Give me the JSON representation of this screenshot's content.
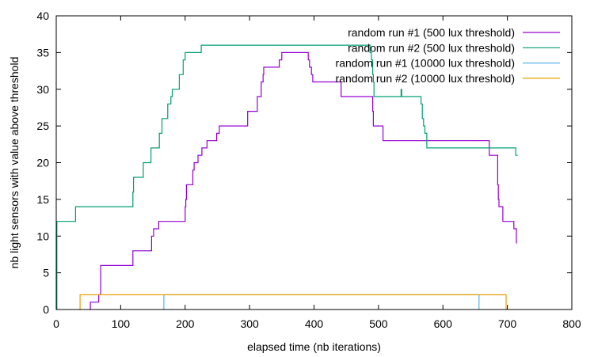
{
  "chart_data": {
    "type": "line",
    "title": "",
    "xlabel": "elapsed time (nb iterations)",
    "ylabel": "nb light sensors with value above threshold",
    "xlim": [
      0,
      800
    ],
    "ylim": [
      0,
      40
    ],
    "x_ticks": [
      "0",
      "100",
      "200",
      "300",
      "400",
      "500",
      "600",
      "700",
      "800"
    ],
    "y_ticks": [
      "0",
      "5",
      "10",
      "15",
      "20",
      "25",
      "30",
      "35",
      "40"
    ],
    "grid": false,
    "legend_position": "top-right",
    "line_style": "step",
    "series": [
      {
        "name": "random run #1 (500 lux threshold)",
        "color": "#9400d3",
        "points": [
          [
            52,
            0
          ],
          [
            53,
            1
          ],
          [
            65,
            1
          ],
          [
            66,
            2
          ],
          [
            68,
            2
          ],
          [
            69,
            6
          ],
          [
            118,
            6
          ],
          [
            119,
            8
          ],
          [
            147,
            8
          ],
          [
            148,
            10
          ],
          [
            150,
            10
          ],
          [
            151,
            11
          ],
          [
            158,
            11
          ],
          [
            159,
            12
          ],
          [
            199,
            12
          ],
          [
            200,
            14
          ],
          [
            201,
            15
          ],
          [
            202,
            17
          ],
          [
            210,
            17
          ],
          [
            212,
            19
          ],
          [
            214,
            20
          ],
          [
            218,
            20
          ],
          [
            220,
            21
          ],
          [
            225,
            21
          ],
          [
            226,
            22
          ],
          [
            232,
            22
          ],
          [
            234,
            23
          ],
          [
            248,
            23
          ],
          [
            249,
            24
          ],
          [
            252,
            24
          ],
          [
            253,
            25
          ],
          [
            296,
            25
          ],
          [
            297,
            27
          ],
          [
            311,
            27
          ],
          [
            312,
            29
          ],
          [
            317,
            29
          ],
          [
            318,
            31
          ],
          [
            320,
            31
          ],
          [
            321,
            32
          ],
          [
            322,
            33
          ],
          [
            344,
            33
          ],
          [
            346,
            34
          ],
          [
            349,
            34
          ],
          [
            350,
            35
          ],
          [
            389,
            35
          ],
          [
            391,
            34
          ],
          [
            393,
            33
          ],
          [
            396,
            32
          ],
          [
            398,
            31
          ],
          [
            441,
            31
          ],
          [
            442,
            29
          ],
          [
            490,
            29
          ],
          [
            491,
            27
          ],
          [
            492,
            25
          ],
          [
            506,
            25
          ],
          [
            507,
            23
          ],
          [
            670,
            23
          ],
          [
            672,
            21
          ],
          [
            683,
            21
          ],
          [
            685,
            17
          ],
          [
            686,
            15
          ],
          [
            687,
            14
          ],
          [
            690,
            14
          ],
          [
            693,
            12
          ],
          [
            708,
            12
          ],
          [
            710,
            11
          ],
          [
            712,
            11
          ],
          [
            714,
            9
          ]
        ]
      },
      {
        "name": "random run #2 (500 lux threshold)",
        "color": "#009e73",
        "points": [
          [
            0,
            0
          ],
          [
            1,
            12
          ],
          [
            29,
            12
          ],
          [
            30,
            14
          ],
          [
            118,
            14
          ],
          [
            119,
            16
          ],
          [
            120,
            18
          ],
          [
            134,
            18
          ],
          [
            135,
            20
          ],
          [
            146,
            20
          ],
          [
            147,
            22
          ],
          [
            158,
            22
          ],
          [
            160,
            24
          ],
          [
            162,
            24
          ],
          [
            164,
            26
          ],
          [
            172,
            26
          ],
          [
            173,
            28
          ],
          [
            176,
            28
          ],
          [
            178,
            29
          ],
          [
            180,
            30
          ],
          [
            190,
            30
          ],
          [
            191,
            32
          ],
          [
            196,
            32
          ],
          [
            197,
            34
          ],
          [
            200,
            35
          ],
          [
            223,
            35
          ],
          [
            225,
            36
          ],
          [
            486,
            36
          ],
          [
            487,
            35
          ],
          [
            489,
            34
          ],
          [
            491,
            32
          ],
          [
            492,
            31
          ],
          [
            493,
            29
          ],
          [
            534,
            29
          ],
          [
            535,
            30
          ],
          [
            536,
            29
          ],
          [
            564,
            29
          ],
          [
            566,
            28
          ],
          [
            568,
            26
          ],
          [
            570,
            25
          ],
          [
            572,
            24
          ],
          [
            575,
            22
          ],
          [
            710,
            22
          ],
          [
            713,
            21
          ],
          [
            716,
            21
          ]
        ]
      },
      {
        "name": "random run #1 (10000 lux threshold)",
        "color": "#56b4e9",
        "points": [
          [
            165,
            0
          ],
          [
            167,
            2
          ],
          [
            654,
            2
          ],
          [
            656,
            0
          ]
        ]
      },
      {
        "name": "random run #2 (10000 lux threshold)",
        "color": "#e69f00",
        "points": [
          [
            35,
            0
          ],
          [
            37,
            2
          ],
          [
            696,
            2
          ],
          [
            698,
            0
          ]
        ]
      }
    ]
  }
}
